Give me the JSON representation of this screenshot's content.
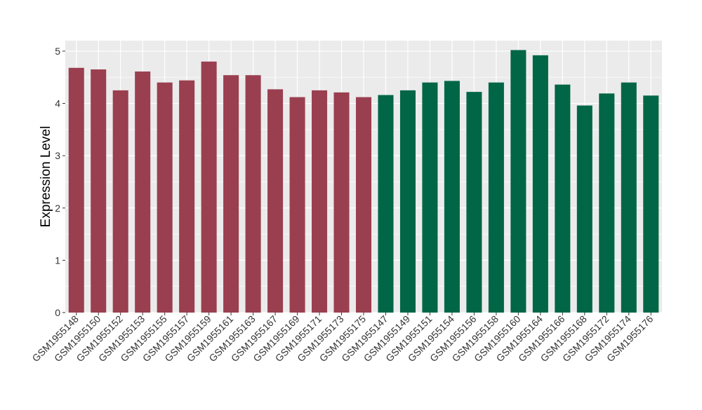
{
  "chart_data": {
    "type": "bar",
    "ylabel": "Expression Level",
    "xlabel": "",
    "ylim": [
      0,
      5.2
    ],
    "y_ticks": [
      "0",
      "1",
      "2",
      "3",
      "4",
      "5"
    ],
    "grid": true,
    "colors": {
      "group_a": "#9A3F4F",
      "group_b": "#006646",
      "panel": "#EBEBEB",
      "gridline": "#FFFFFF"
    },
    "categories": [
      "GSM1955148",
      "GSM1955150",
      "GSM1955152",
      "GSM1955153",
      "GSM1955155",
      "GSM1955157",
      "GSM1955159",
      "GSM1955161",
      "GSM1955163",
      "GSM1955167",
      "GSM1955169",
      "GSM1955171",
      "GSM1955173",
      "GSM1955175",
      "GSM1955147",
      "GSM1955149",
      "GSM1955151",
      "GSM1955154",
      "GSM1955156",
      "GSM1955158",
      "GSM1955160",
      "GSM1955164",
      "GSM1955166",
      "GSM1955168",
      "GSM1955172",
      "GSM1955174",
      "GSM1955176"
    ],
    "values": [
      4.68,
      4.65,
      4.25,
      4.61,
      4.4,
      4.44,
      4.8,
      4.54,
      4.54,
      4.27,
      4.12,
      4.25,
      4.21,
      4.12,
      4.16,
      4.25,
      4.4,
      4.43,
      4.22,
      4.4,
      5.02,
      4.92,
      4.36,
      3.96,
      4.19,
      4.4,
      4.15
    ],
    "bar_groups": [
      "a",
      "a",
      "a",
      "a",
      "a",
      "a",
      "a",
      "a",
      "a",
      "a",
      "a",
      "a",
      "a",
      "a",
      "b",
      "b",
      "b",
      "b",
      "b",
      "b",
      "b",
      "b",
      "b",
      "b",
      "b",
      "b",
      "b"
    ]
  }
}
